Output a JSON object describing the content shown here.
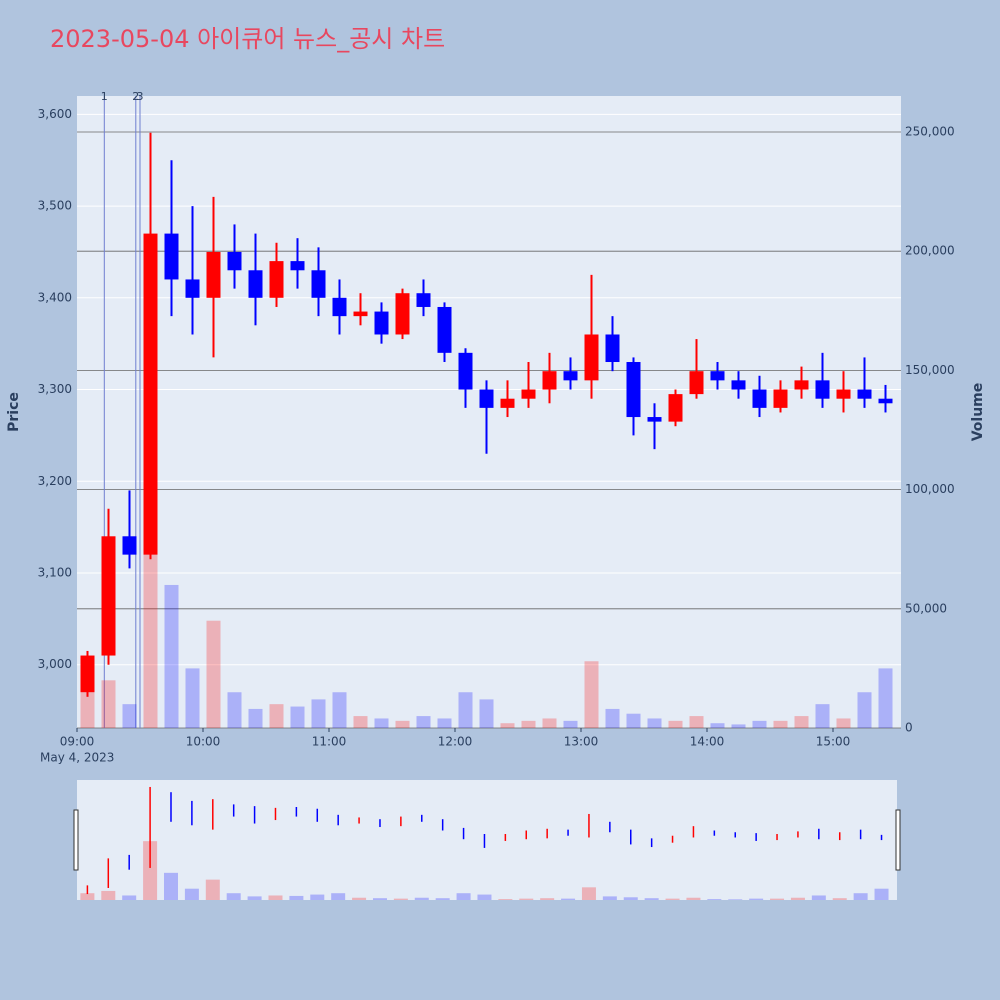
{
  "chart_data": {
    "type": "candlestick",
    "title": "2023-05-04 아이큐어 뉴스_공시 차트",
    "ylabel": "Price",
    "y2label": "Volume",
    "date_label": "May 4, 2023",
    "up_color": "#ff0000",
    "down_color": "#0000ff",
    "x": [
      "09:00",
      "09:10",
      "09:20",
      "09:30",
      "09:40",
      "09:50",
      "10:00",
      "10:10",
      "10:20",
      "10:30",
      "10:40",
      "10:50",
      "11:00",
      "11:10",
      "11:20",
      "11:30",
      "11:40",
      "11:50",
      "12:00",
      "12:10",
      "12:20",
      "12:30",
      "12:40",
      "12:50",
      "13:00",
      "13:10",
      "13:20",
      "13:30",
      "13:40",
      "13:50",
      "14:00",
      "14:10",
      "14:20",
      "14:30",
      "14:40",
      "14:50",
      "15:00",
      "15:10",
      "15:20"
    ],
    "open": [
      2970,
      3010,
      3140,
      3120,
      3470,
      3420,
      3400,
      3450,
      3430,
      3400,
      3440,
      3430,
      3400,
      3380,
      3385,
      3360,
      3405,
      3390,
      3340,
      3300,
      3280,
      3290,
      3300,
      3320,
      3310,
      3360,
      3330,
      3270,
      3265,
      3295,
      3320,
      3310,
      3300,
      3280,
      3300,
      3310,
      3290,
      3300,
      3290
    ],
    "high": [
      3015,
      3170,
      3190,
      3580,
      3550,
      3500,
      3510,
      3480,
      3470,
      3460,
      3465,
      3455,
      3420,
      3405,
      3395,
      3410,
      3420,
      3395,
      3345,
      3310,
      3310,
      3330,
      3340,
      3335,
      3425,
      3380,
      3335,
      3285,
      3300,
      3355,
      3330,
      3320,
      3315,
      3310,
      3325,
      3340,
      3320,
      3335,
      3305
    ],
    "low": [
      2965,
      3000,
      3105,
      3115,
      3380,
      3360,
      3335,
      3410,
      3370,
      3390,
      3410,
      3380,
      3360,
      3370,
      3350,
      3355,
      3380,
      3330,
      3280,
      3230,
      3270,
      3280,
      3285,
      3300,
      3290,
      3320,
      3250,
      3235,
      3260,
      3290,
      3300,
      3290,
      3270,
      3275,
      3290,
      3280,
      3275,
      3280,
      3275
    ],
    "close": [
      3010,
      3140,
      3120,
      3470,
      3420,
      3400,
      3450,
      3430,
      3400,
      3440,
      3430,
      3400,
      3380,
      3385,
      3360,
      3405,
      3390,
      3340,
      3300,
      3280,
      3290,
      3300,
      3320,
      3310,
      3360,
      3330,
      3270,
      3265,
      3295,
      3320,
      3310,
      3300,
      3280,
      3300,
      3310,
      3290,
      3300,
      3290,
      3285
    ],
    "volume": [
      15000,
      20000,
      10000,
      130000,
      60000,
      25000,
      45000,
      15000,
      8000,
      10000,
      9000,
      12000,
      15000,
      5000,
      4000,
      3000,
      5000,
      4000,
      15000,
      12000,
      2000,
      3000,
      4000,
      3000,
      28000,
      8000,
      6000,
      4000,
      3000,
      5000,
      2000,
      1500,
      3000,
      3000,
      5000,
      10000,
      4000,
      15000,
      25000
    ],
    "ylim": [
      2931,
      3620
    ],
    "yticks": [
      {
        "value": 3000,
        "label": "3,000"
      },
      {
        "value": 3100,
        "label": "3,100"
      },
      {
        "value": 3200,
        "label": "3,200"
      },
      {
        "value": 3300,
        "label": "3,300"
      },
      {
        "value": 3400,
        "label": "3,400"
      },
      {
        "value": 3500,
        "label": "3,500"
      },
      {
        "value": 3600,
        "label": "3,600"
      }
    ],
    "y2lim": [
      0,
      265100
    ],
    "y2ticks": [
      0,
      {
        "value": 50000,
        "label": "50,000"
      },
      {
        "value": 100000,
        "label": "100,000"
      },
      {
        "value": 150000,
        "label": "150,000"
      },
      {
        "value": 200000,
        "label": "200,000"
      },
      {
        "value": 250000,
        "label": "250,000"
      }
    ],
    "xticks": [
      "09:00",
      "10:00",
      "11:00",
      "12:00",
      "13:00",
      "14:00",
      "15:00"
    ],
    "annotations": [
      {
        "x": "09:13",
        "label": "1"
      },
      {
        "x": "09:28",
        "label": "2"
      },
      {
        "x": "09:30",
        "label": "3"
      }
    ]
  }
}
